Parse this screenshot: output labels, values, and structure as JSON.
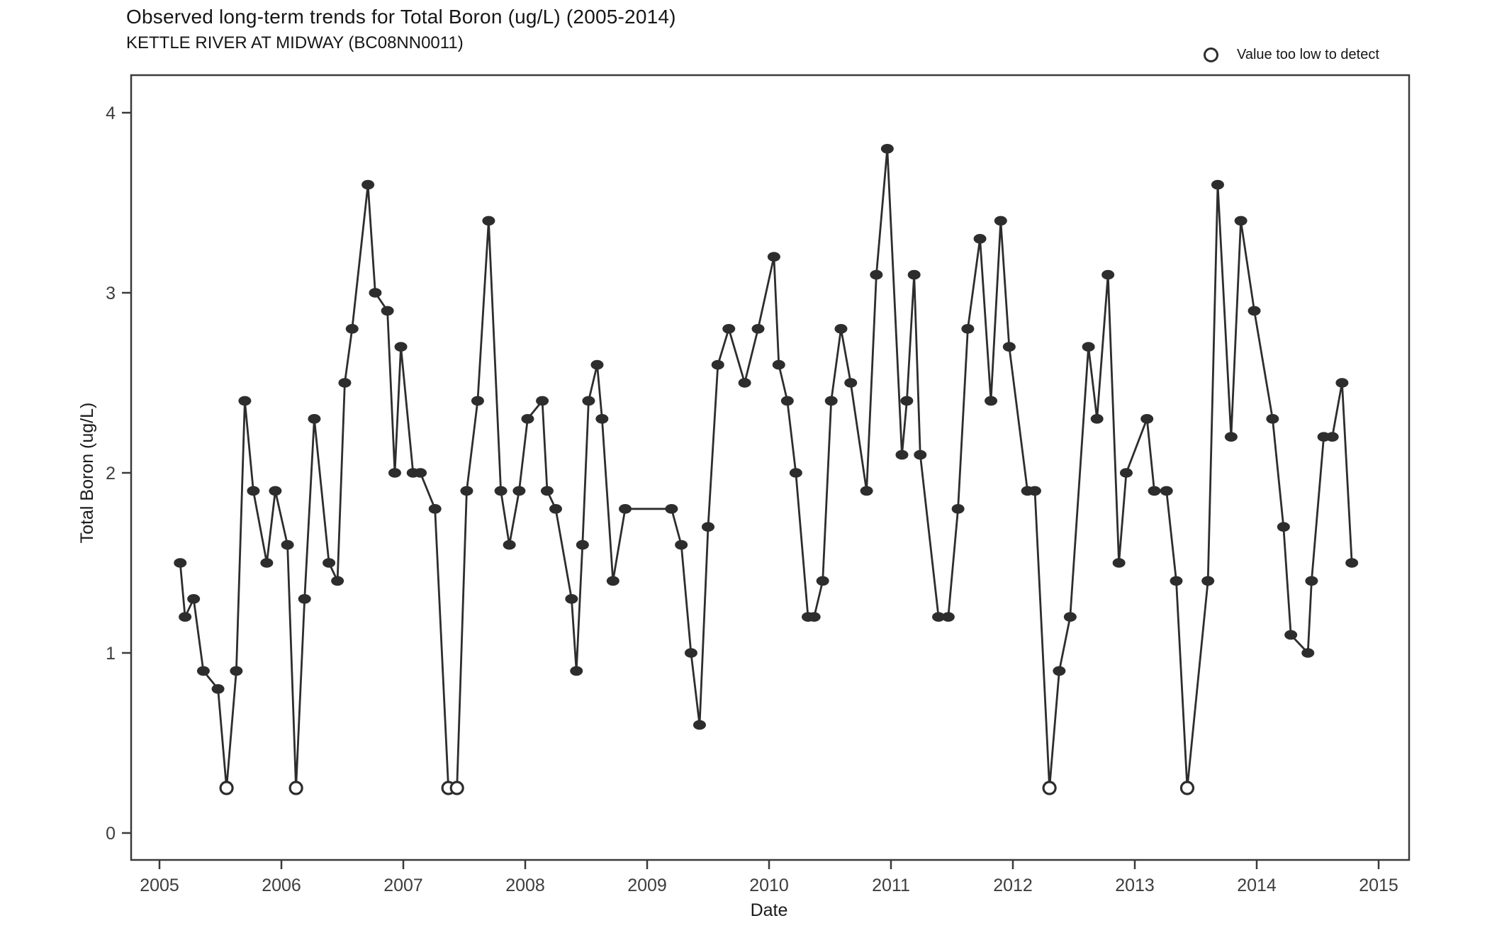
{
  "header": {
    "title": "Observed long-term trends for Total Boron (ug/L) (2005-2014)",
    "subtitle": "KETTLE RIVER AT MIDWAY (BC08NN0011)"
  },
  "legend": {
    "label": "Value too low to detect"
  },
  "chart_data": {
    "type": "scatter",
    "mode": "line+markers",
    "title": "Observed long-term trends for Total Boron (ug/L) (2005-2014)",
    "subtitle": "KETTLE RIVER AT MIDWAY (BC08NN0011)",
    "xlabel": "Date",
    "ylabel": "Total Boron (ug/L)",
    "x_ticks": [
      2005,
      2006,
      2007,
      2008,
      2009,
      2010,
      2011,
      2012,
      2013,
      2014,
      2015
    ],
    "y_ticks": [
      0,
      1,
      2,
      3,
      4
    ],
    "xlim": [
      2004.77,
      2015.25
    ],
    "ylim": [
      -0.15,
      4.21
    ],
    "grid": false,
    "legend_position": "top-right",
    "legend_entries": [
      "Value too low to detect"
    ],
    "nondetect_plotted_value": 0.25,
    "marker_color": "#2d2d2d",
    "line_color": "#2d2d2d",
    "points": [
      {
        "x": 2005.17,
        "y": 1.5,
        "nd": false
      },
      {
        "x": 2005.21,
        "y": 1.2,
        "nd": false
      },
      {
        "x": 2005.28,
        "y": 1.3,
        "nd": false
      },
      {
        "x": 2005.36,
        "y": 0.9,
        "nd": false
      },
      {
        "x": 2005.48,
        "y": 0.8,
        "nd": false
      },
      {
        "x": 2005.55,
        "y": 0.25,
        "nd": true
      },
      {
        "x": 2005.63,
        "y": 0.9,
        "nd": false
      },
      {
        "x": 2005.7,
        "y": 2.4,
        "nd": false
      },
      {
        "x": 2005.77,
        "y": 1.9,
        "nd": false
      },
      {
        "x": 2005.88,
        "y": 1.5,
        "nd": false
      },
      {
        "x": 2005.95,
        "y": 1.9,
        "nd": false
      },
      {
        "x": 2006.05,
        "y": 1.6,
        "nd": false
      },
      {
        "x": 2006.12,
        "y": 0.25,
        "nd": true
      },
      {
        "x": 2006.19,
        "y": 1.3,
        "nd": false
      },
      {
        "x": 2006.27,
        "y": 2.3,
        "nd": false
      },
      {
        "x": 2006.39,
        "y": 1.5,
        "nd": false
      },
      {
        "x": 2006.46,
        "y": 1.4,
        "nd": false
      },
      {
        "x": 2006.52,
        "y": 2.5,
        "nd": false
      },
      {
        "x": 2006.58,
        "y": 2.8,
        "nd": false
      },
      {
        "x": 2006.71,
        "y": 3.6,
        "nd": false
      },
      {
        "x": 2006.77,
        "y": 3.0,
        "nd": false
      },
      {
        "x": 2006.87,
        "y": 2.9,
        "nd": false
      },
      {
        "x": 2006.93,
        "y": 2.0,
        "nd": false
      },
      {
        "x": 2006.98,
        "y": 2.7,
        "nd": false
      },
      {
        "x": 2007.08,
        "y": 2.0,
        "nd": false
      },
      {
        "x": 2007.14,
        "y": 2.0,
        "nd": false
      },
      {
        "x": 2007.26,
        "y": 1.8,
        "nd": false
      },
      {
        "x": 2007.37,
        "y": 0.25,
        "nd": true
      },
      {
        "x": 2007.44,
        "y": 0.25,
        "nd": true
      },
      {
        "x": 2007.52,
        "y": 1.9,
        "nd": false
      },
      {
        "x": 2007.61,
        "y": 2.4,
        "nd": false
      },
      {
        "x": 2007.7,
        "y": 3.4,
        "nd": false
      },
      {
        "x": 2007.8,
        "y": 1.9,
        "nd": false
      },
      {
        "x": 2007.87,
        "y": 1.6,
        "nd": false
      },
      {
        "x": 2007.95,
        "y": 1.9,
        "nd": false
      },
      {
        "x": 2008.02,
        "y": 2.3,
        "nd": false
      },
      {
        "x": 2008.14,
        "y": 2.4,
        "nd": false
      },
      {
        "x": 2008.18,
        "y": 1.9,
        "nd": false
      },
      {
        "x": 2008.25,
        "y": 1.8,
        "nd": false
      },
      {
        "x": 2008.38,
        "y": 1.3,
        "nd": false
      },
      {
        "x": 2008.42,
        "y": 0.9,
        "nd": false
      },
      {
        "x": 2008.47,
        "y": 1.6,
        "nd": false
      },
      {
        "x": 2008.52,
        "y": 2.4,
        "nd": false
      },
      {
        "x": 2008.59,
        "y": 2.6,
        "nd": false
      },
      {
        "x": 2008.63,
        "y": 2.3,
        "nd": false
      },
      {
        "x": 2008.72,
        "y": 1.4,
        "nd": false
      },
      {
        "x": 2008.82,
        "y": 1.8,
        "nd": false
      },
      {
        "x": 2009.2,
        "y": 1.8,
        "nd": false
      },
      {
        "x": 2009.28,
        "y": 1.6,
        "nd": false
      },
      {
        "x": 2009.36,
        "y": 1.0,
        "nd": false
      },
      {
        "x": 2009.43,
        "y": 0.6,
        "nd": false
      },
      {
        "x": 2009.5,
        "y": 1.7,
        "nd": false
      },
      {
        "x": 2009.58,
        "y": 2.6,
        "nd": false
      },
      {
        "x": 2009.67,
        "y": 2.8,
        "nd": false
      },
      {
        "x": 2009.8,
        "y": 2.5,
        "nd": false
      },
      {
        "x": 2009.91,
        "y": 2.8,
        "nd": false
      },
      {
        "x": 2010.04,
        "y": 3.2,
        "nd": false
      },
      {
        "x": 2010.08,
        "y": 2.6,
        "nd": false
      },
      {
        "x": 2010.15,
        "y": 2.4,
        "nd": false
      },
      {
        "x": 2010.22,
        "y": 2.0,
        "nd": false
      },
      {
        "x": 2010.32,
        "y": 1.2,
        "nd": false
      },
      {
        "x": 2010.37,
        "y": 1.2,
        "nd": false
      },
      {
        "x": 2010.44,
        "y": 1.4,
        "nd": false
      },
      {
        "x": 2010.51,
        "y": 2.4,
        "nd": false
      },
      {
        "x": 2010.59,
        "y": 2.8,
        "nd": false
      },
      {
        "x": 2010.67,
        "y": 2.5,
        "nd": false
      },
      {
        "x": 2010.8,
        "y": 1.9,
        "nd": false
      },
      {
        "x": 2010.88,
        "y": 3.1,
        "nd": false
      },
      {
        "x": 2010.97,
        "y": 3.8,
        "nd": false
      },
      {
        "x": 2011.09,
        "y": 2.1,
        "nd": false
      },
      {
        "x": 2011.13,
        "y": 2.4,
        "nd": false
      },
      {
        "x": 2011.19,
        "y": 3.1,
        "nd": false
      },
      {
        "x": 2011.24,
        "y": 2.1,
        "nd": false
      },
      {
        "x": 2011.39,
        "y": 1.2,
        "nd": false
      },
      {
        "x": 2011.47,
        "y": 1.2,
        "nd": false
      },
      {
        "x": 2011.55,
        "y": 1.8,
        "nd": false
      },
      {
        "x": 2011.63,
        "y": 2.8,
        "nd": false
      },
      {
        "x": 2011.73,
        "y": 3.3,
        "nd": false
      },
      {
        "x": 2011.82,
        "y": 2.4,
        "nd": false
      },
      {
        "x": 2011.9,
        "y": 3.4,
        "nd": false
      },
      {
        "x": 2011.97,
        "y": 2.7,
        "nd": false
      },
      {
        "x": 2012.12,
        "y": 1.9,
        "nd": false
      },
      {
        "x": 2012.18,
        "y": 1.9,
        "nd": false
      },
      {
        "x": 2012.3,
        "y": 0.25,
        "nd": true
      },
      {
        "x": 2012.38,
        "y": 0.9,
        "nd": false
      },
      {
        "x": 2012.47,
        "y": 1.2,
        "nd": false
      },
      {
        "x": 2012.62,
        "y": 2.7,
        "nd": false
      },
      {
        "x": 2012.69,
        "y": 2.3,
        "nd": false
      },
      {
        "x": 2012.78,
        "y": 3.1,
        "nd": false
      },
      {
        "x": 2012.87,
        "y": 1.5,
        "nd": false
      },
      {
        "x": 2012.93,
        "y": 2.0,
        "nd": false
      },
      {
        "x": 2013.1,
        "y": 2.3,
        "nd": false
      },
      {
        "x": 2013.16,
        "y": 1.9,
        "nd": false
      },
      {
        "x": 2013.26,
        "y": 1.9,
        "nd": false
      },
      {
        "x": 2013.34,
        "y": 1.4,
        "nd": false
      },
      {
        "x": 2013.43,
        "y": 0.25,
        "nd": true
      },
      {
        "x": 2013.6,
        "y": 1.4,
        "nd": false
      },
      {
        "x": 2013.68,
        "y": 3.6,
        "nd": false
      },
      {
        "x": 2013.79,
        "y": 2.2,
        "nd": false
      },
      {
        "x": 2013.87,
        "y": 3.4,
        "nd": false
      },
      {
        "x": 2013.98,
        "y": 2.9,
        "nd": false
      },
      {
        "x": 2014.13,
        "y": 2.3,
        "nd": false
      },
      {
        "x": 2014.22,
        "y": 1.7,
        "nd": false
      },
      {
        "x": 2014.28,
        "y": 1.1,
        "nd": false
      },
      {
        "x": 2014.42,
        "y": 1.0,
        "nd": false
      },
      {
        "x": 2014.45,
        "y": 1.4,
        "nd": false
      },
      {
        "x": 2014.55,
        "y": 2.2,
        "nd": false
      },
      {
        "x": 2014.62,
        "y": 2.2,
        "nd": false
      },
      {
        "x": 2014.7,
        "y": 2.5,
        "nd": false
      },
      {
        "x": 2014.78,
        "y": 1.5,
        "nd": false
      }
    ]
  }
}
